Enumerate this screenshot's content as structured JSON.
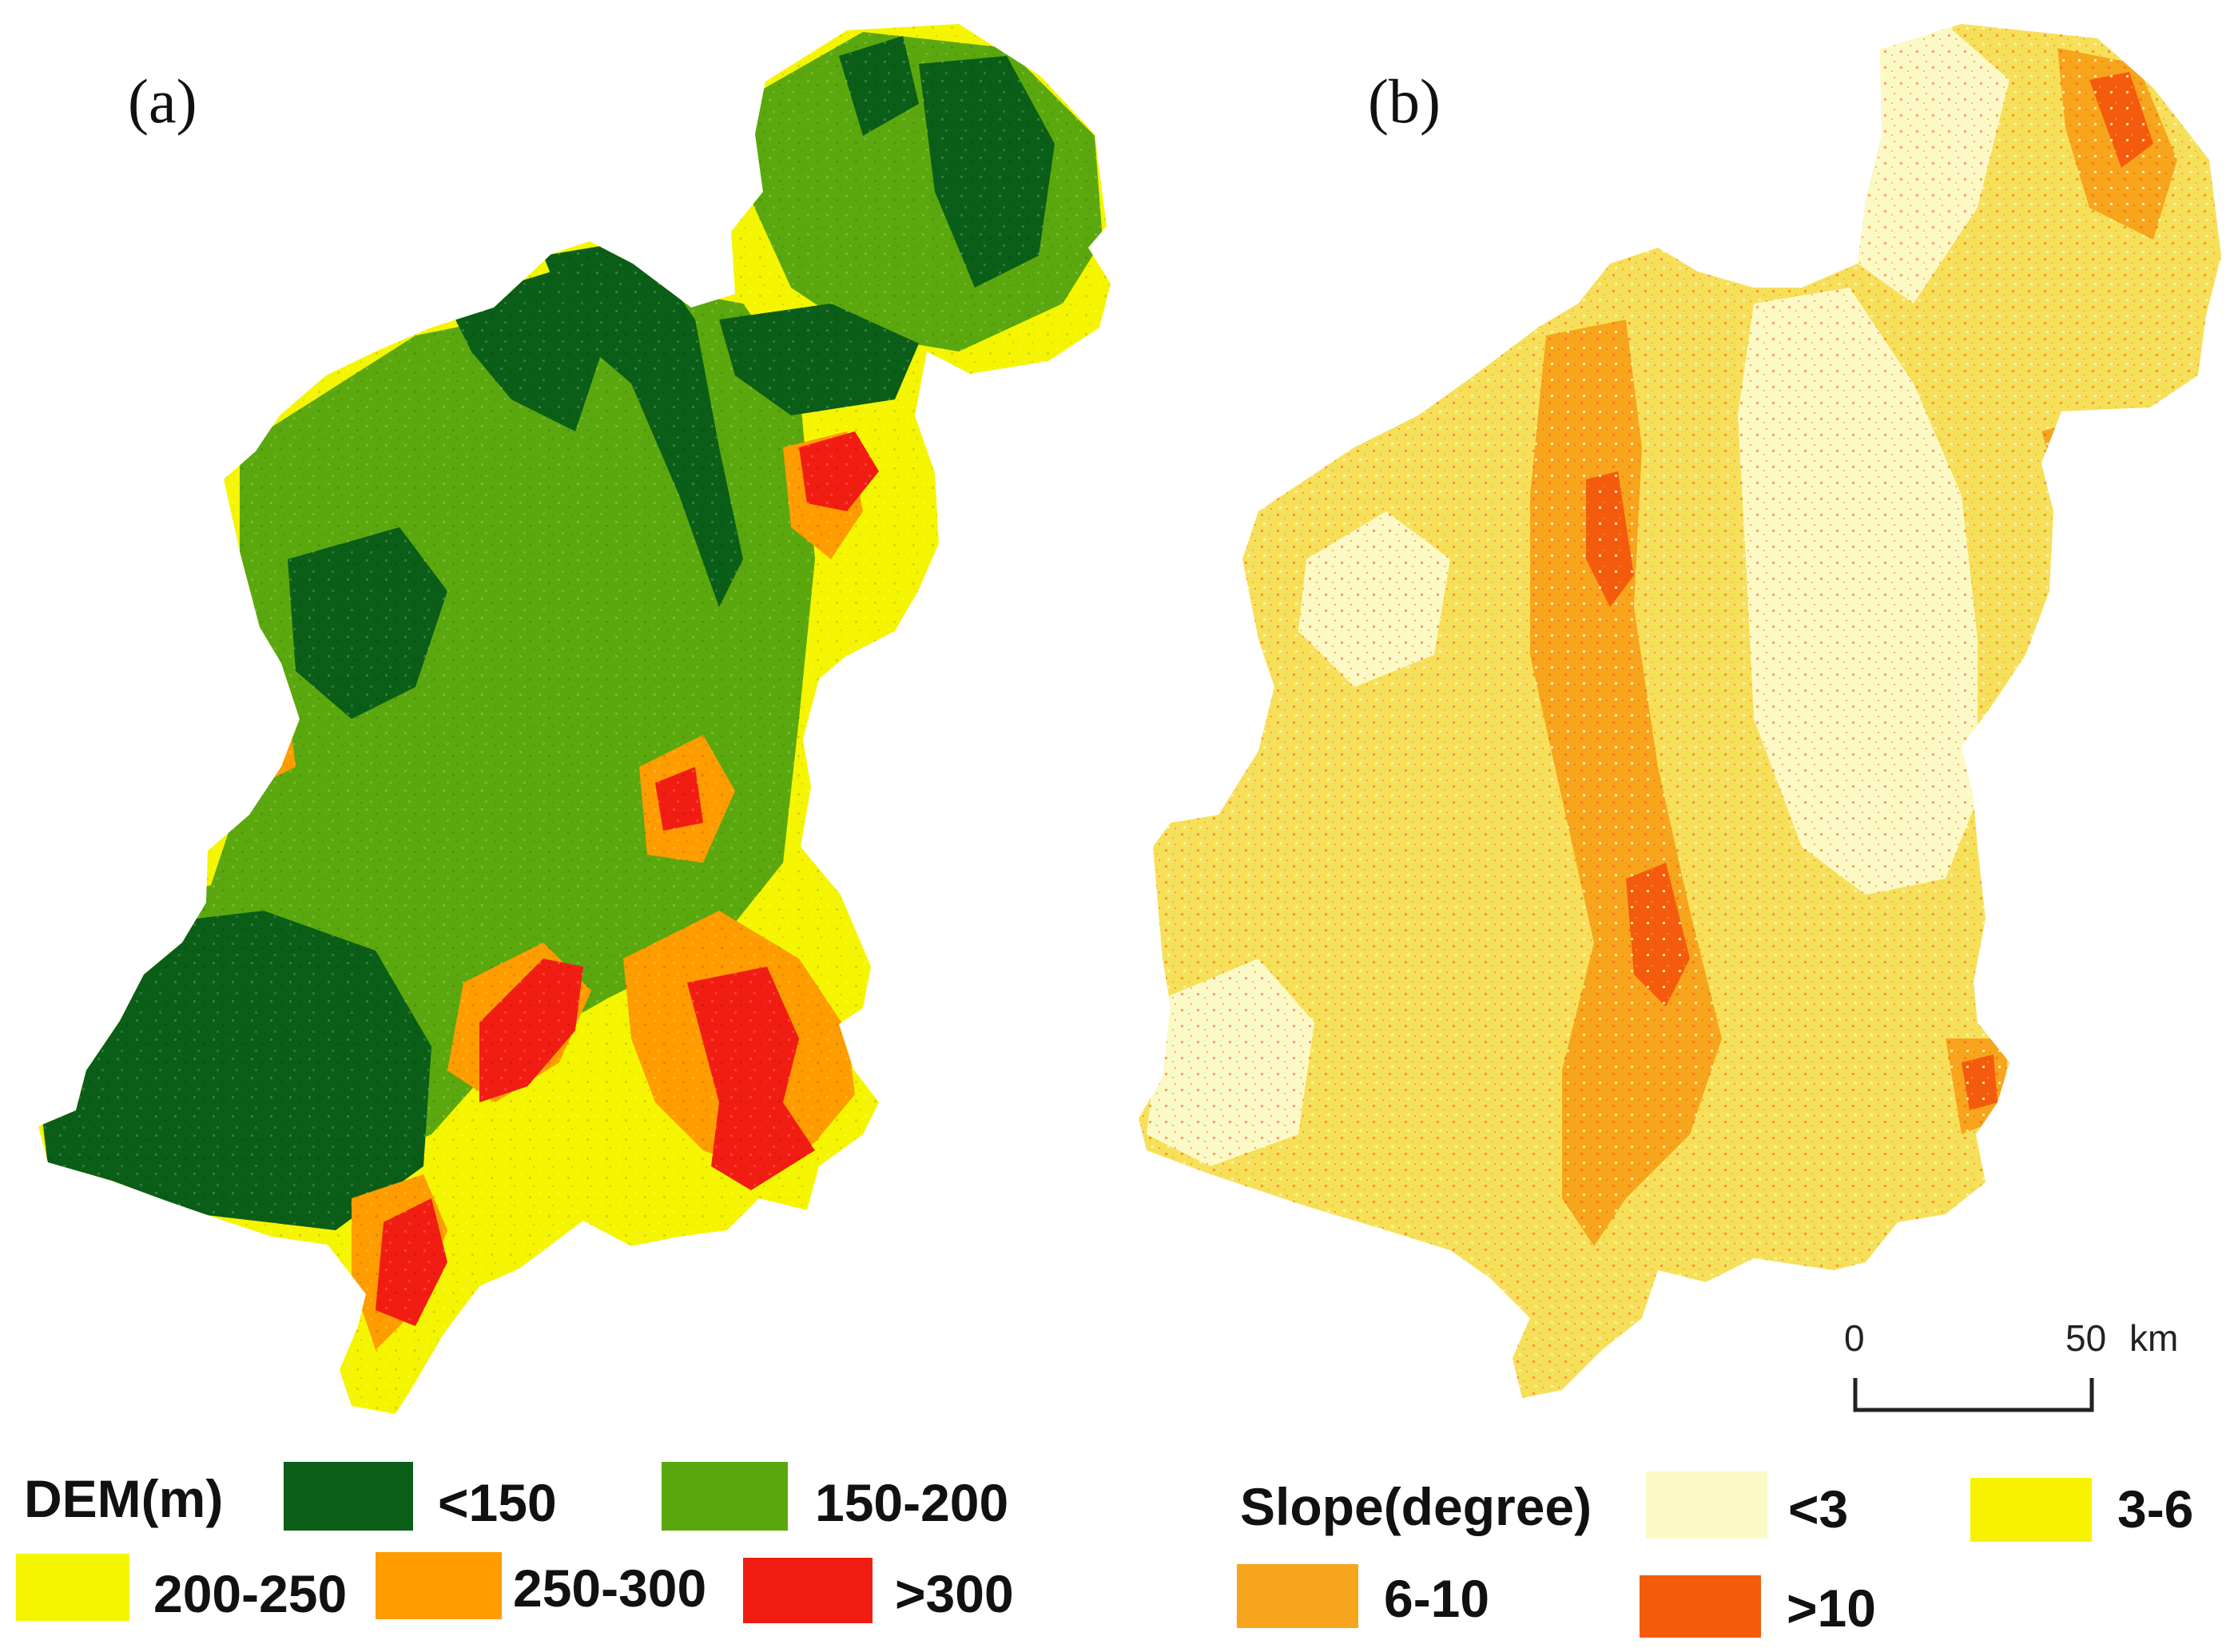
{
  "panels": [
    {
      "label": "(a)",
      "legend": {
        "title": "DEM(m)",
        "classes": [
          {
            "label": "<150",
            "color": "#0b5e17"
          },
          {
            "label": "150-200",
            "color": "#5aa80e"
          },
          {
            "label": "200-250",
            "color": "#f5f500"
          },
          {
            "label": "250-300",
            "color": "#ff9c00"
          },
          {
            "label": ">300",
            "color": "#f21d12"
          }
        ]
      }
    },
    {
      "label": "(b)",
      "legend": {
        "title": "Slope(degree)",
        "classes": [
          {
            "label": "<3",
            "color": "#fbf9c6"
          },
          {
            "label": "3-6",
            "color": "#f8f100"
          },
          {
            "label": "6-10",
            "color": "#f7a51c"
          },
          {
            "label": ">10",
            "color": "#f55b0d"
          }
        ]
      }
    }
  ],
  "scale_bar": {
    "start": "0",
    "end": "50",
    "unit": "km"
  }
}
